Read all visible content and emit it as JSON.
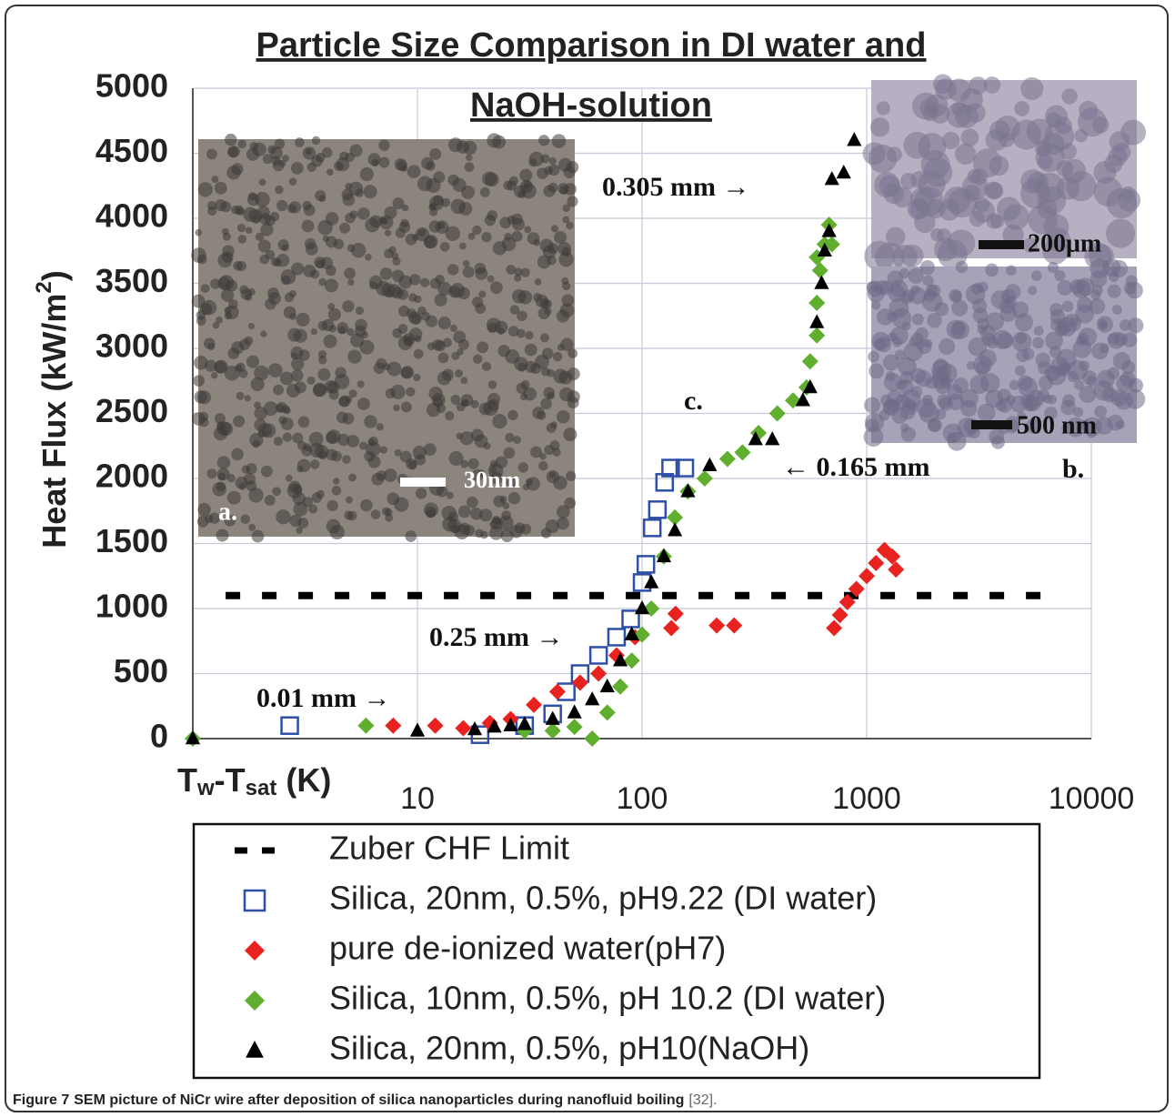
{
  "chart_data": {
    "type": "scatter",
    "title": [
      "Particle Size Comparison in DI water and",
      "NaOH-solution"
    ],
    "x_label_parts": [
      "T",
      "w",
      "-T",
      "sat",
      " (K)"
    ],
    "y_label_parts": [
      "Heat Flux (kW/m",
      "2",
      ")"
    ],
    "xlim": [
      1,
      10000
    ],
    "xticks": [
      10,
      100,
      1000,
      10000
    ],
    "log_x": true,
    "ylim": [
      0,
      5000
    ],
    "yticks": [
      0,
      500,
      1000,
      1500,
      2000,
      2500,
      3000,
      3500,
      4000,
      4500,
      5000
    ],
    "grid": true,
    "series": [
      {
        "name": "Zuber CHF Limit",
        "marker": "dash",
        "color": "#000000",
        "x": [
          1.4,
          7000
        ],
        "values": [
          1100,
          1100
        ]
      },
      {
        "name": "Silica, 20nm, 0.5%, pH9.22 (DI water)",
        "marker": "square-open",
        "color": "#2e4fa8",
        "x": [
          2.7,
          19,
          30,
          40,
          46,
          53,
          64,
          77,
          89,
          100,
          104,
          111,
          117,
          126,
          134,
          155
        ],
        "values": [
          100,
          30,
          100,
          190,
          360,
          500,
          640,
          780,
          920,
          1200,
          1340,
          1620,
          1760,
          1970,
          2080,
          2080
        ]
      },
      {
        "name": "pure de-ionized water(pH7)",
        "marker": "diamond",
        "color": "#e8231f",
        "x": [
          7.8,
          12,
          16,
          21,
          26,
          33,
          42,
          53,
          64,
          77,
          93,
          135,
          141,
          215,
          257,
          716,
          760,
          820,
          900,
          1000,
          1100,
          1200,
          1300,
          1350
        ],
        "values": [
          100,
          100,
          80,
          120,
          150,
          260,
          360,
          430,
          500,
          640,
          780,
          850,
          960,
          870,
          870,
          850,
          950,
          1050,
          1150,
          1250,
          1350,
          1450,
          1400,
          1300
        ]
      },
      {
        "name": "Silica, 10nm, 0.5%, pH 10.2 (DI water)",
        "marker": "diamond",
        "color": "#5fae2e",
        "x": [
          1,
          5.9,
          30,
          40,
          50,
          60,
          70,
          80,
          90,
          100,
          110,
          125,
          140,
          160,
          190,
          240,
          280,
          330,
          400,
          470,
          540,
          560,
          600,
          600,
          620,
          650,
          680,
          700,
          600
        ],
        "values": [
          0,
          100,
          60,
          60,
          90,
          0,
          200,
          400,
          600,
          800,
          1000,
          1400,
          1700,
          1900,
          2000,
          2150,
          2200,
          2350,
          2500,
          2600,
          2700,
          2900,
          3100,
          3350,
          3600,
          3800,
          3950,
          3800,
          3700
        ]
      },
      {
        "name": "Silica, 20nm, 0.5%, pH10(NaOH)",
        "marker": "triangle",
        "color": "#000000",
        "x": [
          1,
          10,
          18,
          22,
          26,
          30,
          40,
          50,
          60,
          70,
          80,
          90,
          100,
          110,
          125,
          140,
          160,
          200,
          320,
          380,
          520,
          560,
          600,
          630,
          650,
          680,
          700,
          790,
          880
        ],
        "values": [
          0,
          60,
          70,
          90,
          100,
          110,
          150,
          200,
          300,
          400,
          600,
          800,
          1000,
          1200,
          1400,
          1600,
          1900,
          2100,
          2300,
          2300,
          2600,
          2700,
          3200,
          3500,
          3750,
          3900,
          4300,
          4350,
          4600
        ]
      }
    ],
    "annotations": {
      "a": "a.",
      "scale_a": "30nm",
      "scale_b1": "200μm",
      "scale_b2": "500 nm",
      "b": "b.",
      "c": "c.",
      "arrow_305": "0.305 mm →",
      "arrow_165": "← 0.165 mm",
      "arrow_25": "0.25 mm →",
      "arrow_01": "0.01 mm →"
    },
    "caption": {
      "label": "Figure 7",
      "text": "SEM picture of NiCr wire after deposition of silica nanoparticles during nanofluid boiling",
      "ref": "[32]."
    }
  }
}
